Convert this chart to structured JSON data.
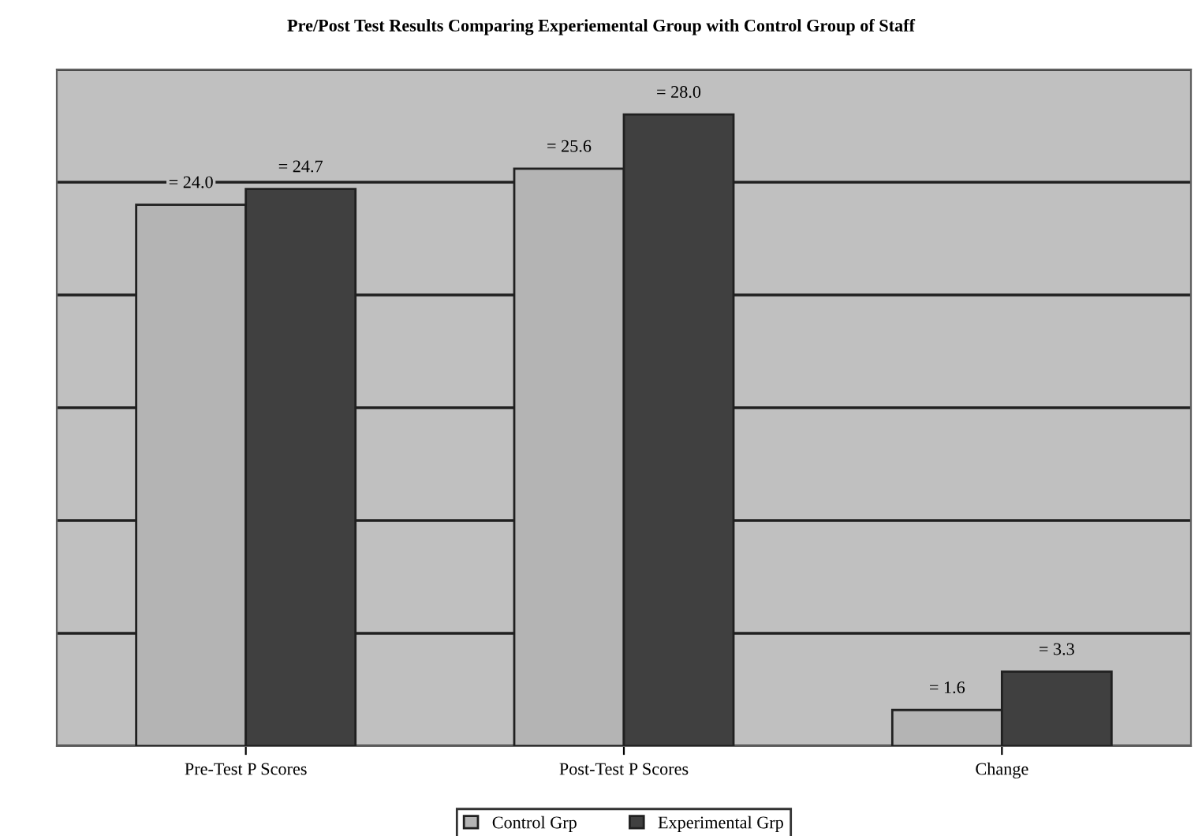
{
  "chart_data": {
    "type": "bar",
    "title": "Pre/Post Test Results Comparing Experiemental Group with Control Group of Staff",
    "categories": [
      "Pre-Test P Scores",
      "Post-Test P Scores",
      "Change"
    ],
    "series": [
      {
        "name": "Control Grp",
        "color": "#b4b4b4",
        "values": [
          24.0,
          25.6,
          1.6
        ],
        "value_labels": [
          "= 24.0",
          "= 25.6",
          "= 1.6"
        ]
      },
      {
        "name": "Experimental Grp",
        "color": "#404040",
        "values": [
          24.7,
          28.0,
          3.3
        ],
        "value_labels": [
          "= 24.7",
          "= 28.0",
          "= 3.3"
        ]
      }
    ],
    "ylim": [
      0,
      30
    ],
    "yticks": [
      {
        "value": 0,
        "label": null
      },
      {
        "value": 5,
        "label": null
      },
      {
        "value": 10,
        "label": null
      },
      {
        "value": 15,
        "label": null
      },
      {
        "value": 20,
        "label": null
      },
      {
        "value": 25,
        "label": null
      },
      {
        "value": 30,
        "label": null
      }
    ],
    "tick_labels": "x",
    "grid": "y",
    "legend": "bottom"
  }
}
